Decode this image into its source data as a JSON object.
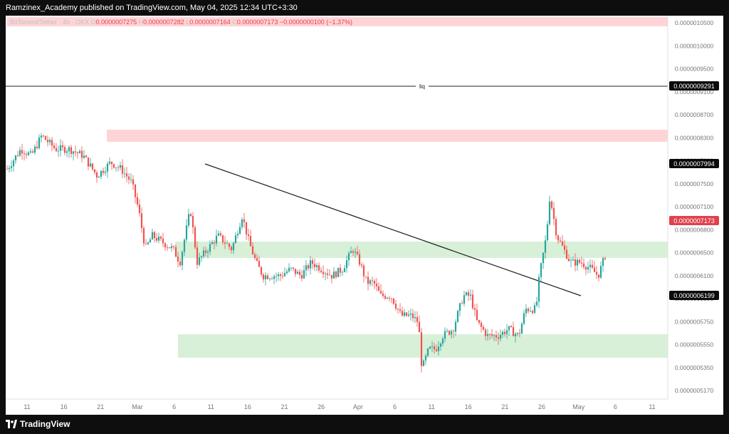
{
  "header": {
    "publish_text": "Ramzinex_Academy published on TradingView.com, May 04, 2025 12:34 UTC+3:30"
  },
  "legend": {
    "symbol": "BitTorrent/Tether · 4h · OKX",
    "o_label": "O",
    "o_value": "0.0000007275",
    "h_label": "H",
    "h_value": "0.0000007282",
    "l_label": "L",
    "l_value": "0.0000007164",
    "c_label": "C",
    "c_value": "0.0000007173",
    "change": "−0.0000000100 (−1.37%)"
  },
  "footer": {
    "brand": "TradingView"
  },
  "colors": {
    "up": "#26a69a",
    "down": "#ef5350",
    "resistance_zone": "#ffd4d6",
    "support_zone": "#d8f0d8",
    "price_badge": "#e0414b"
  },
  "chart_data": {
    "type": "candlestick",
    "title": "",
    "xlabel": "",
    "ylabel": "",
    "ylim": [
      5.05e-07,
      1.08e-06
    ],
    "x_ticks": [
      "11",
      "16",
      "21",
      "Mar",
      "6",
      "11",
      "16",
      "21",
      "26",
      "Apr",
      "6",
      "11",
      "16",
      "21",
      "26",
      "May",
      "6",
      "11"
    ],
    "y_ticks": [
      "0.0000010500",
      "0.0000010000",
      "0.0000009500",
      "0.0000009100",
      "0.0000008700",
      "0.0000008300",
      "0.0000007900",
      "0.0000007500",
      "0.0000007100",
      "0.0000006800",
      "0.0000006500",
      "0.0000006100",
      "0.0000005950",
      "0.0000005750",
      "0.0000005550",
      "0.0000005350",
      "0.0000005170"
    ],
    "price_series": [
      [
        0,
        8.5e-07
      ],
      [
        4,
        8.8e-07
      ],
      [
        7,
        8.7e-07
      ],
      [
        10,
        9e-07
      ],
      [
        14,
        8.8e-07
      ],
      [
        18,
        8.8e-07
      ],
      [
        22,
        8.7e-07
      ],
      [
        26,
        8.4e-07
      ],
      [
        30,
        8.6e-07
      ],
      [
        33,
        8.5e-07
      ],
      [
        36,
        8.3e-07
      ],
      [
        38,
        7.9e-07
      ],
      [
        40,
        7.3e-07
      ],
      [
        42,
        7.5e-07
      ],
      [
        45,
        7.4e-07
      ],
      [
        48,
        7.3e-07
      ],
      [
        50,
        7.1e-07
      ],
      [
        53,
        7.9e-07
      ],
      [
        55,
        7.1e-07
      ],
      [
        58,
        7.3e-07
      ],
      [
        61,
        7.5e-07
      ],
      [
        63,
        7.4e-07
      ],
      [
        65,
        7.3e-07
      ],
      [
        68,
        7.8e-07
      ],
      [
        70,
        7.4e-07
      ],
      [
        72,
        7.1e-07
      ],
      [
        74,
        6.9e-07
      ],
      [
        76,
        6.9e-07
      ],
      [
        79,
        6.9e-07
      ],
      [
        82,
        7e-07
      ],
      [
        85,
        6.9e-07
      ],
      [
        88,
        7.1e-07
      ],
      [
        91,
        7e-07
      ],
      [
        94,
        6.9e-07
      ],
      [
        97,
        7e-07
      ],
      [
        100,
        7.3e-07
      ],
      [
        102,
        7.1e-07
      ],
      [
        104,
        6.8e-07
      ],
      [
        106,
        6.8e-07
      ],
      [
        108,
        6.6e-07
      ],
      [
        111,
        6.6e-07
      ],
      [
        114,
        6.3e-07
      ],
      [
        117,
        6.3e-07
      ],
      [
        119,
        6.2e-07
      ],
      [
        120,
        5.5e-07
      ],
      [
        122,
        5.8e-07
      ],
      [
        124,
        5.8e-07
      ],
      [
        126,
        6e-07
      ],
      [
        129,
        6.1e-07
      ],
      [
        132,
        6.6e-07
      ],
      [
        134,
        6.6e-07
      ],
      [
        136,
        6.2e-07
      ],
      [
        139,
        6e-07
      ],
      [
        142,
        6e-07
      ],
      [
        145,
        6.1e-07
      ],
      [
        148,
        6e-07
      ],
      [
        150,
        6.4e-07
      ],
      [
        153,
        6.4e-07
      ],
      [
        154,
        6.9e-07
      ],
      [
        156,
        7.5e-07
      ],
      [
        157,
        8.1e-07
      ],
      [
        159,
        7.5e-07
      ],
      [
        161,
        7.3e-07
      ],
      [
        163,
        7.1e-07
      ],
      [
        166,
        7.1e-07
      ],
      [
        169,
        7e-07
      ],
      [
        171,
        6.9e-07
      ],
      [
        173,
        7.2e-07
      ]
    ],
    "lines": [
      {
        "label": "liq",
        "value": 9.291e-07
      },
      {
        "label": "",
        "value": 7.994e-07
      },
      {
        "label": "",
        "value": 6.199e-07
      }
    ],
    "zones": [
      {
        "type": "resistance",
        "from": 8.3e-07,
        "to": 8.5e-07
      },
      {
        "type": "support",
        "from": 6.7e-07,
        "to": 6.9e-07
      },
      {
        "type": "support",
        "from": 5.5e-07,
        "to": 5.8e-07
      }
    ],
    "current_price": "0.0000007173",
    "price_labels": [
      "0.0000009291",
      "0.0000007994",
      "0.0000006199"
    ]
  }
}
